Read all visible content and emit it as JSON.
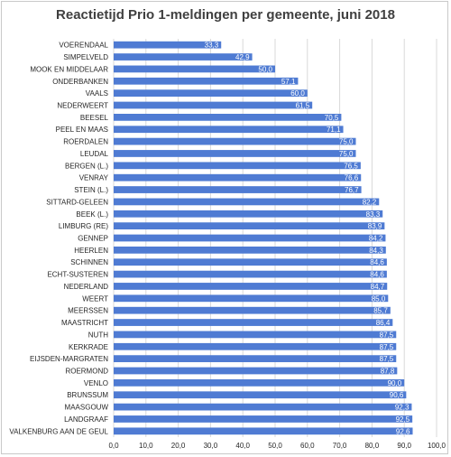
{
  "chart_data": {
    "type": "bar",
    "orientation": "horizontal",
    "title": "Reactietijd Prio 1-meldingen per gemeente, juni 2018",
    "xlabel": "",
    "ylabel": "",
    "xlim": [
      0,
      100
    ],
    "tick_step": 10,
    "tick_labels": [
      "0,0",
      "10,0",
      "20,0",
      "30,0",
      "40,0",
      "50,0",
      "60,0",
      "70,0",
      "80,0",
      "90,0",
      "100,0"
    ],
    "grid": true,
    "legend": "none",
    "bar_color": "#4f7bd3",
    "categories": [
      "VOERENDAAL",
      "SIMPELVELD",
      "MOOK EN MIDDELAAR",
      "ONDERBANKEN",
      "VAALS",
      "NEDERWEERT",
      "BEESEL",
      "PEEL EN MAAS",
      "ROERDALEN",
      "LEUDAL",
      "BERGEN (L.)",
      "VENRAY",
      "STEIN (L.)",
      "SITTARD-GELEEN",
      "BEEK (L.)",
      "LIMBURG (RE)",
      "GENNEP",
      "HEERLEN",
      "SCHINNEN",
      "ECHT-SUSTEREN",
      "NEDERLAND",
      "WEERT",
      "MEERSSEN",
      "MAASTRICHT",
      "NUTH",
      "KERKRADE",
      "EIJSDEN-MARGRATEN",
      "ROERMOND",
      "VENLO",
      "BRUNSSUM",
      "MAASGOUW",
      "LANDGRAAF",
      "VALKENBURG AAN DE GEUL"
    ],
    "values": [
      33.3,
      42.9,
      50.0,
      57.1,
      60.0,
      61.5,
      70.5,
      71.1,
      75.0,
      75.0,
      76.5,
      76.6,
      76.7,
      82.2,
      83.3,
      83.9,
      84.2,
      84.3,
      84.6,
      84.6,
      84.7,
      85.0,
      85.7,
      86.4,
      87.5,
      87.5,
      87.5,
      87.8,
      90.0,
      90.6,
      92.3,
      92.5,
      92.6
    ],
    "value_labels": [
      "33,3",
      "42,9",
      "50,0",
      "57,1",
      "60,0",
      "61,5",
      "70,5",
      "71,1",
      "75,0",
      "75,0",
      "76,5",
      "76,6",
      "76,7",
      "82,2",
      "83,3",
      "83,9",
      "84,2",
      "84,3",
      "84,6",
      "84,6",
      "84,7",
      "85,0",
      "85,7",
      "86,4",
      "87,5",
      "87,5",
      "87,5",
      "87,8",
      "90,0",
      "90,6",
      "92,3",
      "92,5",
      "92,6"
    ]
  }
}
